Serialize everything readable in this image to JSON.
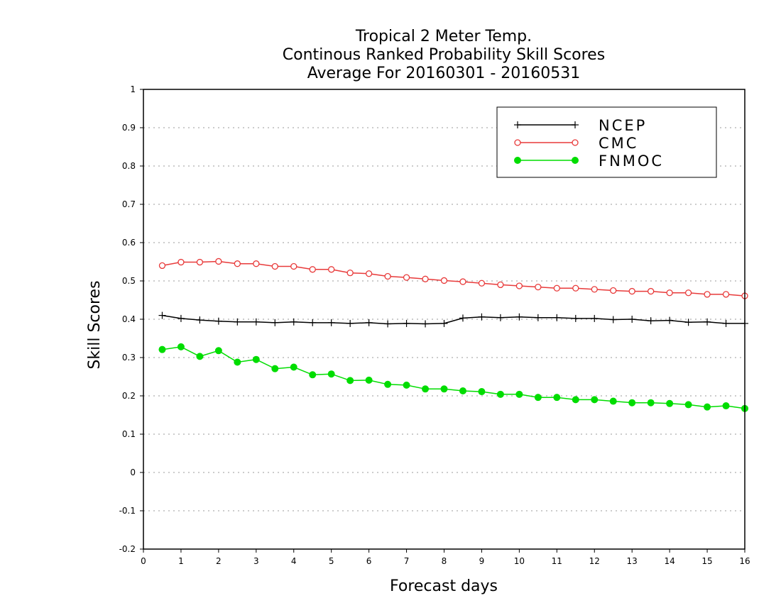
{
  "chart_data": {
    "type": "line",
    "title_lines": [
      "Tropical 2 Meter Temp.",
      "Continous Ranked Probability Skill Scores",
      "Average For 20160301 - 20160531"
    ],
    "xlabel": "Forecast days",
    "ylabel": "Skill Scores",
    "xlim": [
      0,
      16
    ],
    "ylim": [
      -0.2,
      1
    ],
    "x_ticks": [
      0,
      1,
      2,
      3,
      4,
      5,
      6,
      7,
      8,
      9,
      10,
      11,
      12,
      13,
      14,
      15,
      16
    ],
    "y_ticks": [
      -0.2,
      -0.1,
      0,
      0.1,
      0.2,
      0.3,
      0.4,
      0.5,
      0.6,
      0.7,
      0.8,
      0.9,
      1
    ],
    "y_tick_labels": [
      "-0.2",
      "-0.1",
      "0",
      "0.1",
      "0.2",
      "0.3",
      "0.4",
      "0.5",
      "0.6",
      "0.7",
      "0.8",
      "0.9",
      "1"
    ],
    "grid": "horizontal dotted",
    "legend_position": "top-right",
    "x": [
      0.5,
      1.0,
      1.5,
      2.0,
      2.5,
      3.0,
      3.5,
      4.0,
      4.5,
      5.0,
      5.5,
      6.0,
      6.5,
      7.0,
      7.5,
      8.0,
      8.5,
      9.0,
      9.5,
      10.0,
      10.5,
      11.0,
      11.5,
      12.0,
      12.5,
      13.0,
      13.5,
      14.0,
      14.5,
      15.0,
      15.5,
      16.0
    ],
    "series": [
      {
        "name": "NCEP",
        "color": "#000000",
        "marker": "plus",
        "values": [
          0.41,
          0.402,
          0.398,
          0.395,
          0.393,
          0.393,
          0.391,
          0.393,
          0.391,
          0.391,
          0.389,
          0.391,
          0.388,
          0.389,
          0.388,
          0.389,
          0.403,
          0.406,
          0.404,
          0.406,
          0.404,
          0.404,
          0.402,
          0.402,
          0.399,
          0.4,
          0.396,
          0.397,
          0.392,
          0.393,
          0.389,
          0.389
        ]
      },
      {
        "name": "CMC",
        "color": "#e83a3a",
        "marker": "open-circle",
        "values": [
          0.54,
          0.549,
          0.549,
          0.551,
          0.545,
          0.545,
          0.538,
          0.538,
          0.53,
          0.53,
          0.521,
          0.519,
          0.512,
          0.509,
          0.505,
          0.501,
          0.498,
          0.494,
          0.49,
          0.487,
          0.484,
          0.481,
          0.481,
          0.478,
          0.475,
          0.473,
          0.473,
          0.469,
          0.469,
          0.465,
          0.465,
          0.461
        ]
      },
      {
        "name": "FNMOC",
        "color": "#00dd00",
        "marker": "filled-circle",
        "values": [
          0.321,
          0.328,
          0.303,
          0.318,
          0.288,
          0.295,
          0.271,
          0.275,
          0.255,
          0.257,
          0.24,
          0.241,
          0.23,
          0.228,
          0.218,
          0.218,
          0.213,
          0.211,
          0.204,
          0.204,
          0.196,
          0.196,
          0.19,
          0.19,
          0.186,
          0.182,
          0.182,
          0.18,
          0.177,
          0.171,
          0.174,
          0.167
        ]
      }
    ]
  }
}
